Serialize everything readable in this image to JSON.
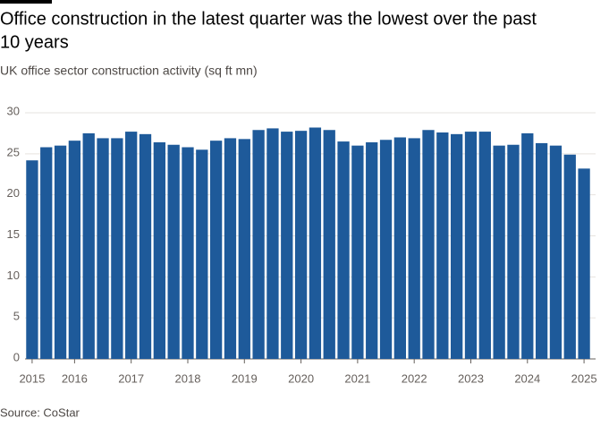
{
  "chart_data": {
    "type": "bar",
    "title": [
      "Office construction in the latest quarter was the lowest over the past",
      "10 years"
    ],
    "subtitle": "UK office sector construction activity (sq ft mn)",
    "source": "Source: CoStar",
    "categories": [
      "2015",
      null,
      null,
      "2016",
      null,
      null,
      null,
      "2017",
      null,
      null,
      null,
      "2018",
      null,
      null,
      null,
      "2019",
      null,
      null,
      null,
      "2020",
      null,
      null,
      null,
      "2021",
      null,
      null,
      null,
      "2022",
      null,
      null,
      null,
      "2023",
      null,
      null,
      null,
      "2024",
      null,
      null,
      null,
      "2025"
    ],
    "values": [
      24.2,
      25.8,
      26.0,
      26.6,
      27.5,
      26.9,
      26.9,
      27.7,
      27.4,
      26.4,
      26.1,
      25.8,
      25.5,
      26.6,
      26.9,
      26.8,
      27.9,
      28.1,
      27.7,
      27.8,
      28.2,
      27.9,
      26.5,
      26.0,
      26.4,
      26.7,
      27.0,
      26.9,
      27.9,
      27.6,
      27.4,
      27.7,
      27.7,
      26.0,
      26.1,
      27.5,
      26.3,
      26.0,
      24.9,
      23.2
    ],
    "color": "#1e5a9a",
    "ylim": [
      0,
      30
    ],
    "yticks": [
      0,
      5,
      10,
      15,
      20,
      25,
      30
    ],
    "grid": true
  }
}
